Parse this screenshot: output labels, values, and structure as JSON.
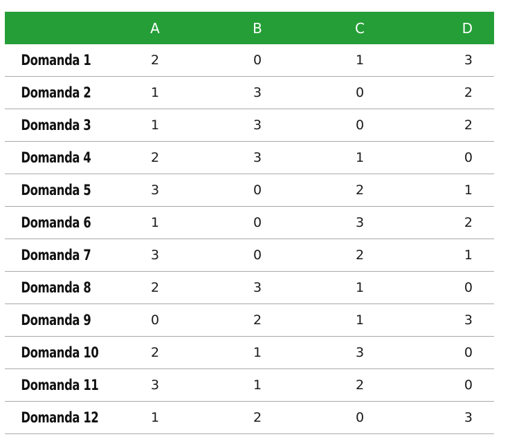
{
  "table": {
    "columns": [
      "",
      "A",
      "B",
      "C",
      "D"
    ],
    "rows": [
      {
        "label": "Domanda 1",
        "A": "2",
        "B": "0",
        "C": "1",
        "D": "3"
      },
      {
        "label": "Domanda 2",
        "A": "1",
        "B": "3",
        "C": "0",
        "D": "2"
      },
      {
        "label": "Domanda 3",
        "A": "1",
        "B": "3",
        "C": "0",
        "D": "2"
      },
      {
        "label": "Domanda 4",
        "A": "2",
        "B": "3",
        "C": "1",
        "D": "0"
      },
      {
        "label": "Domanda 5",
        "A": "3",
        "B": "0",
        "C": "2",
        "D": "1"
      },
      {
        "label": "Domanda 6",
        "A": "1",
        "B": "0",
        "C": "3",
        "D": "2"
      },
      {
        "label": "Domanda 7",
        "A": "3",
        "B": "0",
        "C": "2",
        "D": "1"
      },
      {
        "label": "Domanda 8",
        "A": "2",
        "B": "3",
        "C": "1",
        "D": "0"
      },
      {
        "label": "Domanda 9",
        "A": "0",
        "B": "2",
        "C": "1",
        "D": "3"
      },
      {
        "label": "Domanda 10",
        "A": "2",
        "B": "1",
        "C": "3",
        "D": "0"
      },
      {
        "label": "Domanda 11",
        "A": "3",
        "B": "1",
        "C": "2",
        "D": "0"
      },
      {
        "label": "Domanda 12",
        "A": "1",
        "B": "2",
        "C": "0",
        "D": "3"
      }
    ]
  },
  "colors": {
    "header_bg": "#259e37",
    "header_text": "#ffffff",
    "divider": "#a8a8a8"
  }
}
